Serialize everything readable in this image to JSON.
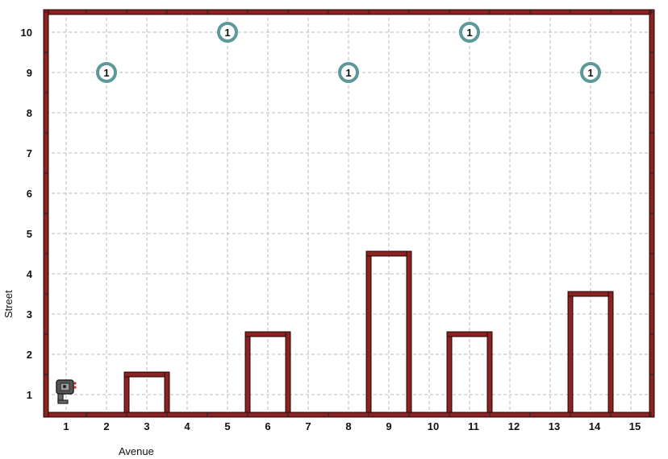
{
  "world": {
    "avenues": 15,
    "streets": 10,
    "x_axis_label": "Avenue",
    "y_axis_label": "Street",
    "avenue_labels": [
      "1",
      "2",
      "3",
      "4",
      "5",
      "6",
      "7",
      "8",
      "9",
      "10",
      "11",
      "12",
      "13",
      "14",
      "15"
    ],
    "street_labels": [
      "1",
      "2",
      "3",
      "4",
      "5",
      "6",
      "7",
      "8",
      "9",
      "10"
    ],
    "wall_color": "#8b2323",
    "grid_color": "#bbbbbb",
    "beeper_color": "#5e9999"
  },
  "beepers": [
    {
      "avenue": 2,
      "street": 9,
      "count": "1"
    },
    {
      "avenue": 5,
      "street": 10,
      "count": "1"
    },
    {
      "avenue": 8,
      "street": 9,
      "count": "1"
    },
    {
      "avenue": 11,
      "street": 10,
      "count": "1"
    },
    {
      "avenue": 14,
      "street": 9,
      "count": "1"
    }
  ],
  "hurdles": [
    {
      "avenue": 3,
      "height": 1
    },
    {
      "avenue": 6,
      "height": 2
    },
    {
      "avenue": 9,
      "height": 4
    },
    {
      "avenue": 11,
      "height": 2
    },
    {
      "avenue": 14,
      "height": 3
    }
  ],
  "robot": {
    "avenue": 1,
    "street": 1,
    "facing": "east",
    "icon": "robot-icon"
  }
}
